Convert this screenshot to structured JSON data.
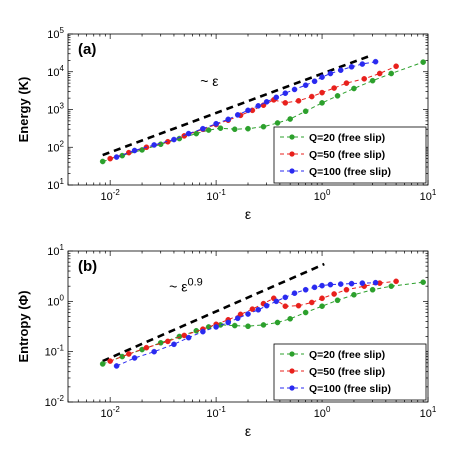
{
  "colors": {
    "green": "#2ca02c",
    "red": "#e8201c",
    "blue": "#2a2af0",
    "black": "#000000"
  },
  "chart_data": [
    {
      "type": "line",
      "panel_label": "(a)",
      "ylabel": "Energy (K)",
      "xlabel": "ε",
      "xscale": "log",
      "yscale": "log",
      "xlim": [
        0.004,
        10
      ],
      "ylim": [
        10,
        100000
      ],
      "x_ticks": [
        "10^-2",
        "10^-1",
        "10^0",
        "10^1"
      ],
      "y_ticks": [
        "10^1",
        "10^2",
        "10^3",
        "10^4",
        "10^5"
      ],
      "legend_position": "bottom-right",
      "reference_line": {
        "label": "~ ε",
        "exponent_text": "",
        "x": [
          0.0085,
          2.9
        ],
        "y": [
          62,
          27000
        ]
      },
      "series": [
        {
          "name": "Q=20 (free slip)",
          "color": "#2ca02c",
          "x": [
            0.0085,
            0.013,
            0.02,
            0.03,
            0.045,
            0.065,
            0.085,
            0.11,
            0.15,
            0.2,
            0.28,
            0.38,
            0.5,
            0.7,
            1.0,
            1.4,
            2.0,
            3.0,
            4.5,
            9.0
          ],
          "y": [
            42,
            60,
            85,
            120,
            170,
            230,
            285,
            320,
            300,
            310,
            350,
            440,
            560,
            900,
            1500,
            2300,
            3600,
            5800,
            9000,
            18000
          ]
        },
        {
          "name": "Q=50 (free slip)",
          "color": "#e8201c",
          "x": [
            0.01,
            0.015,
            0.022,
            0.035,
            0.05,
            0.075,
            0.1,
            0.13,
            0.17,
            0.22,
            0.28,
            0.35,
            0.45,
            0.6,
            0.8,
            1.0,
            1.3,
            1.7,
            2.5,
            3.5,
            5.0
          ],
          "y": [
            50,
            72,
            100,
            140,
            200,
            300,
            400,
            520,
            700,
            950,
            1300,
            1800,
            1500,
            1700,
            2200,
            2800,
            3700,
            5000,
            6500,
            9000,
            14000
          ]
        },
        {
          "name": "Q=100 (free slip)",
          "color": "#2a2af0",
          "x": [
            0.0115,
            0.017,
            0.026,
            0.04,
            0.055,
            0.075,
            0.1,
            0.13,
            0.16,
            0.2,
            0.25,
            0.3,
            0.37,
            0.45,
            0.55,
            0.7,
            0.85,
            1.0,
            1.2,
            1.5,
            1.9,
            2.4,
            3.2
          ],
          "y": [
            55,
            82,
            115,
            160,
            230,
            310,
            420,
            550,
            720,
            950,
            1250,
            1600,
            2100,
            2700,
            3400,
            4400,
            5600,
            7200,
            9000,
            11000,
            13500,
            16000,
            18500
          ]
        }
      ]
    },
    {
      "type": "line",
      "panel_label": "(b)",
      "ylabel": "Entropy (Φ)",
      "xlabel": "ε",
      "xscale": "log",
      "yscale": "log",
      "xlim": [
        0.004,
        10
      ],
      "ylim": [
        0.01,
        10
      ],
      "x_ticks": [
        "10^-2",
        "10^-1",
        "10^0",
        "10^1"
      ],
      "y_ticks": [
        "10^-2",
        "10^-1",
        "10^0",
        "10^1"
      ],
      "legend_position": "bottom-right",
      "reference_line": {
        "label": "~ ε",
        "exponent_text": "0.9",
        "x": [
          0.0085,
          1.05
        ],
        "y": [
          0.065,
          5.5
        ]
      },
      "series": [
        {
          "name": "Q=20 (free slip)",
          "color": "#2ca02c",
          "x": [
            0.0085,
            0.013,
            0.02,
            0.03,
            0.045,
            0.065,
            0.085,
            0.11,
            0.15,
            0.2,
            0.28,
            0.38,
            0.5,
            0.7,
            1.0,
            1.4,
            2.0,
            3.0,
            4.5,
            9.0
          ],
          "y": [
            0.057,
            0.08,
            0.11,
            0.15,
            0.2,
            0.26,
            0.31,
            0.34,
            0.33,
            0.32,
            0.34,
            0.38,
            0.45,
            0.6,
            0.8,
            1.05,
            1.35,
            1.7,
            2.0,
            2.4
          ]
        },
        {
          "name": "Q=50 (free slip)",
          "color": "#e8201c",
          "x": [
            0.01,
            0.015,
            0.022,
            0.035,
            0.05,
            0.075,
            0.1,
            0.13,
            0.17,
            0.22,
            0.28,
            0.35,
            0.45,
            0.6,
            0.8,
            1.0,
            1.3,
            1.7,
            2.5,
            3.5,
            5.0
          ],
          "y": [
            0.065,
            0.09,
            0.12,
            0.16,
            0.21,
            0.28,
            0.35,
            0.43,
            0.55,
            0.7,
            0.9,
            1.15,
            0.8,
            0.82,
            0.95,
            1.15,
            1.4,
            1.7,
            2.0,
            2.3,
            2.5
          ]
        },
        {
          "name": "Q=100 (free slip)",
          "color": "#2a2af0",
          "x": [
            0.0115,
            0.017,
            0.026,
            0.04,
            0.055,
            0.075,
            0.1,
            0.13,
            0.16,
            0.2,
            0.25,
            0.3,
            0.37,
            0.45,
            0.55,
            0.7,
            0.85,
            1.0,
            1.2,
            1.5,
            1.9,
            2.4,
            3.2
          ],
          "y": [
            0.052,
            0.075,
            0.1,
            0.14,
            0.19,
            0.25,
            0.31,
            0.38,
            0.46,
            0.56,
            0.68,
            0.82,
            1.0,
            1.2,
            1.45,
            1.7,
            1.9,
            2.05,
            2.15,
            2.2,
            2.25,
            2.3,
            2.35
          ]
        }
      ]
    }
  ]
}
